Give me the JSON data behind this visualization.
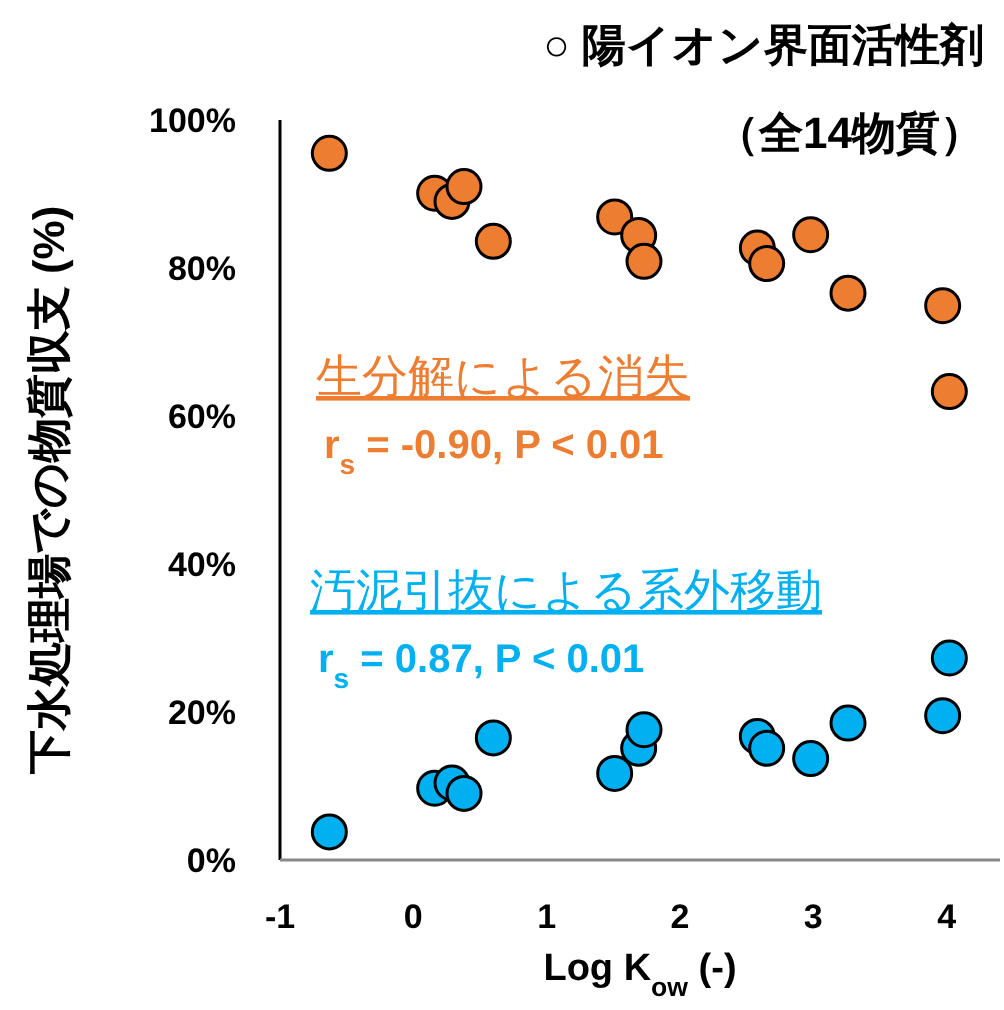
{
  "chart_data": {
    "type": "scatter",
    "title": "○ 陽イオン界面活性剤",
    "subtitle": "（全14物質）",
    "xlabel": "Log K$_{ow}$ (-)",
    "ylabel": "下水処理場での物質収支 (%)",
    "xlim": [
      -1,
      4.4
    ],
    "xticks": [
      -1,
      0,
      1,
      2,
      3,
      4
    ],
    "ylim": [
      0,
      100
    ],
    "yticks": [
      {
        "value": 0,
        "label": "0%"
      },
      {
        "value": 20,
        "label": "20%"
      },
      {
        "value": 40,
        "label": "40%"
      },
      {
        "value": 60,
        "label": "60%"
      },
      {
        "value": 80,
        "label": "80%"
      },
      {
        "value": 100,
        "label": "100%"
      }
    ],
    "x": [
      -0.63,
      0.16,
      0.29,
      0.38,
      0.6,
      1.51,
      1.69,
      1.73,
      2.58,
      2.65,
      2.98,
      3.26,
      3.97,
      4.02
    ],
    "series": [
      {
        "name": "生分解による消失",
        "color": "#ed7d31",
        "values": [
          95.5,
          90.1,
          89.0,
          91.0,
          83.6,
          86.9,
          84.4,
          80.9,
          82.7,
          80.6,
          84.5,
          76.6,
          74.9,
          63.3
        ]
      },
      {
        "name": "汚泥引抜による系外移動",
        "color": "#00b0f0",
        "values": [
          3.8,
          9.7,
          10.4,
          9.0,
          16.5,
          11.7,
          15.1,
          17.6,
          16.7,
          15.1,
          13.7,
          18.5,
          19.5,
          27.3
        ]
      }
    ],
    "annotations": [
      "r$_{s}$ = -0.90, P < 0.01",
      "r$_{s}$ = 0.87, P < 0.01"
    ],
    "marker": "circle",
    "grid": false,
    "legend": false
  }
}
